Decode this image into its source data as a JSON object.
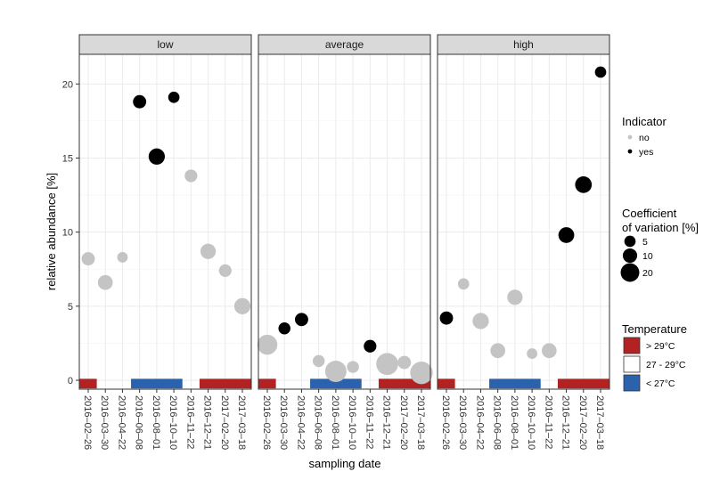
{
  "chart_data": {
    "type": "scatter",
    "xlabel": "sampling date",
    "ylabel": "relative abundance [%]",
    "ylim": [
      -0.6,
      22
    ],
    "yticks": [
      0,
      5,
      10,
      15,
      20
    ],
    "grid": true,
    "legend_position": "right",
    "categories": [
      "2016-02-26",
      "2016-03-30",
      "2016-04-22",
      "2016-06-08",
      "2016-08-01",
      "2016-10-10",
      "2016-11-22",
      "2016-12-21",
      "2017-02-20",
      "2017-03-18"
    ],
    "tick_labels": [
      "2016–02–26",
      "2016–03–30",
      "2016–04–22",
      "2016–06–08",
      "2016–08–01",
      "2016–10–10",
      "2016–11–22",
      "2016–12–21",
      "2017–02–20",
      "2017–03–18"
    ],
    "facets": [
      {
        "label": "low",
        "points": [
          {
            "date_index": 0,
            "value": 8.2,
            "cv": 8,
            "indicator": "no"
          },
          {
            "date_index": 1,
            "value": 6.6,
            "cv": 11,
            "indicator": "no"
          },
          {
            "date_index": 2,
            "value": 8.3,
            "cv": 4,
            "indicator": "no"
          },
          {
            "date_index": 3,
            "value": 18.8,
            "cv": 8,
            "indicator": "yes"
          },
          {
            "date_index": 4,
            "value": 15.1,
            "cv": 14,
            "indicator": "yes"
          },
          {
            "date_index": 5,
            "value": 19.1,
            "cv": 5,
            "indicator": "yes"
          },
          {
            "date_index": 6,
            "value": 13.8,
            "cv": 7,
            "indicator": "no"
          },
          {
            "date_index": 7,
            "value": 8.7,
            "cv": 12,
            "indicator": "no"
          },
          {
            "date_index": 8,
            "value": 7.4,
            "cv": 7,
            "indicator": "no"
          },
          {
            "date_index": 9,
            "value": 5.0,
            "cv": 14,
            "indicator": "no"
          }
        ]
      },
      {
        "label": "average",
        "points": [
          {
            "date_index": 0,
            "value": 2.4,
            "cv": 24,
            "indicator": "no"
          },
          {
            "date_index": 1,
            "value": 3.5,
            "cv": 6,
            "indicator": "yes"
          },
          {
            "date_index": 2,
            "value": 4.1,
            "cv": 8,
            "indicator": "yes"
          },
          {
            "date_index": 3,
            "value": 1.3,
            "cv": 6,
            "indicator": "no"
          },
          {
            "date_index": 4,
            "value": 0.6,
            "cv": 28,
            "indicator": "no"
          },
          {
            "date_index": 5,
            "value": 0.9,
            "cv": 6,
            "indicator": "no"
          },
          {
            "date_index": 6,
            "value": 2.3,
            "cv": 7,
            "indicator": "yes"
          },
          {
            "date_index": 7,
            "value": 1.1,
            "cv": 30,
            "indicator": "no"
          },
          {
            "date_index": 8,
            "value": 1.2,
            "cv": 8,
            "indicator": "no"
          },
          {
            "date_index": 9,
            "value": 0.5,
            "cv": 32,
            "indicator": "no"
          }
        ]
      },
      {
        "label": "high",
        "points": [
          {
            "date_index": 0,
            "value": 4.2,
            "cv": 8,
            "indicator": "yes"
          },
          {
            "date_index": 1,
            "value": 6.5,
            "cv": 5,
            "indicator": "no"
          },
          {
            "date_index": 2,
            "value": 4.0,
            "cv": 14,
            "indicator": "no"
          },
          {
            "date_index": 3,
            "value": 2.0,
            "cv": 11,
            "indicator": "no"
          },
          {
            "date_index": 4,
            "value": 5.6,
            "cv": 12,
            "indicator": "no"
          },
          {
            "date_index": 5,
            "value": 1.8,
            "cv": 4,
            "indicator": "no"
          },
          {
            "date_index": 6,
            "value": 2.0,
            "cv": 11,
            "indicator": "no"
          },
          {
            "date_index": 7,
            "value": 9.8,
            "cv": 13,
            "indicator": "yes"
          },
          {
            "date_index": 8,
            "value": 13.2,
            "cv": 15,
            "indicator": "yes"
          },
          {
            "date_index": 9,
            "value": 20.8,
            "cv": 5,
            "indicator": "yes"
          }
        ]
      }
    ],
    "temperature": [
      {
        "from_index": 0,
        "to_index": 0,
        "class": "> 29°C"
      },
      {
        "from_index": 3,
        "to_index": 5,
        "class": "< 27°C"
      },
      {
        "from_index": 7,
        "to_index": 9,
        "class": "> 29°C"
      }
    ],
    "legends": {
      "indicator": {
        "title": "Indicator",
        "items": [
          {
            "label": "no",
            "color": "#c4c4c4"
          },
          {
            "label": "yes",
            "color": "#000000"
          }
        ]
      },
      "cv": {
        "title_lines": [
          "Coefficient",
          "of variation [%]"
        ],
        "items": [
          {
            "label": "5",
            "value": 5
          },
          {
            "label": "10",
            "value": 10
          },
          {
            "label": "20",
            "value": 20
          }
        ]
      },
      "temperature": {
        "title": "Temperature",
        "items": [
          {
            "label": "> 29°C",
            "color": "#b22222"
          },
          {
            "label": "27 - 29°C",
            "color": "#ffffff"
          },
          {
            "label": "< 27°C",
            "color": "#2a62ad"
          }
        ]
      }
    }
  }
}
